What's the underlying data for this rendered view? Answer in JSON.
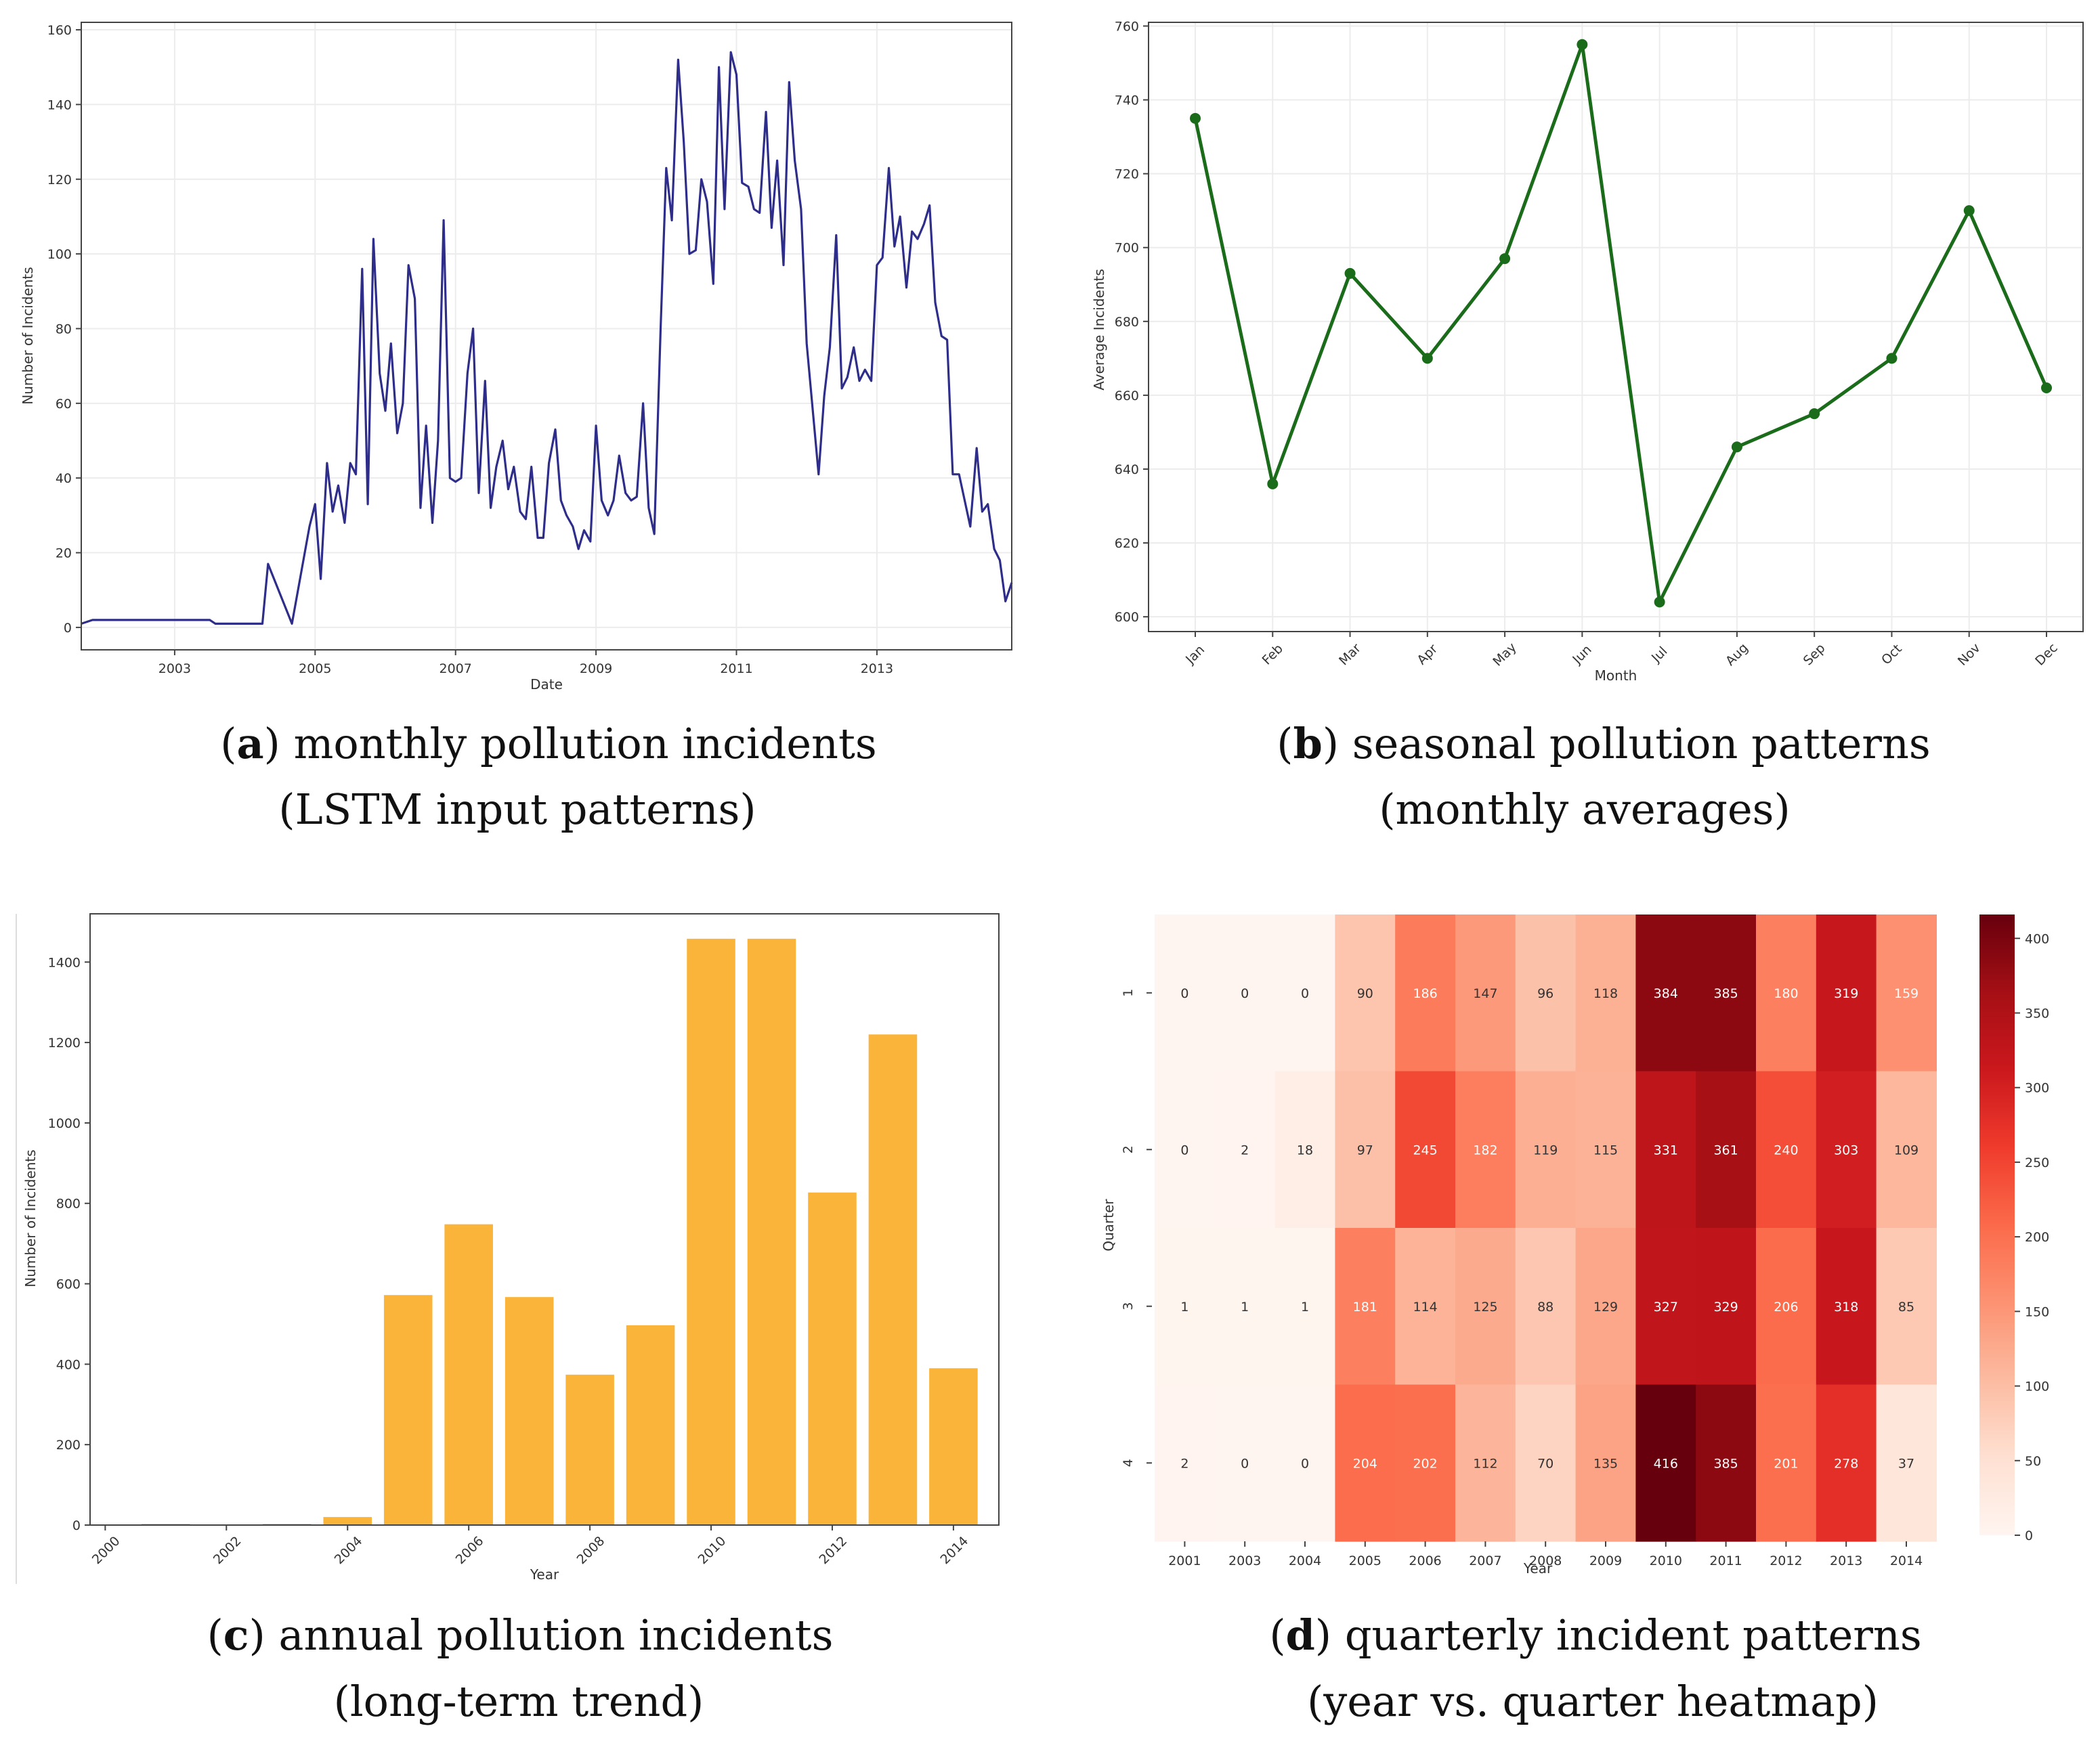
{
  "chart_data": [
    {
      "id": "a",
      "type": "line",
      "xlabel": "Date",
      "ylabel": "Number of Incidents",
      "xlim": [
        2001.67,
        2014.92
      ],
      "ylim": [
        -6,
        162
      ],
      "yticks": [
        0,
        20,
        40,
        60,
        80,
        100,
        120,
        140,
        160
      ],
      "xticks": [
        {
          "label": "2003",
          "x": 2003
        },
        {
          "label": "2005",
          "x": 2005
        },
        {
          "label": "2007",
          "x": 2007
        },
        {
          "label": "2009",
          "x": 2009
        },
        {
          "label": "2011",
          "x": 2011
        },
        {
          "label": "2013",
          "x": 2013
        }
      ],
      "color": "#2e2e8a",
      "points": [
        [
          2001.67,
          1
        ],
        [
          2001.83,
          2
        ],
        [
          2002.5,
          2
        ],
        [
          2003.0,
          2
        ],
        [
          2003.5,
          2
        ],
        [
          2003.58,
          1
        ],
        [
          2004.0,
          1
        ],
        [
          2004.25,
          1
        ],
        [
          2004.33,
          17
        ],
        [
          2004.67,
          1
        ],
        [
          2004.92,
          27
        ],
        [
          2005.0,
          33
        ],
        [
          2005.08,
          13
        ],
        [
          2005.17,
          44
        ],
        [
          2005.25,
          31
        ],
        [
          2005.33,
          38
        ],
        [
          2005.42,
          28
        ],
        [
          2005.5,
          44
        ],
        [
          2005.58,
          41
        ],
        [
          2005.67,
          96
        ],
        [
          2005.75,
          33
        ],
        [
          2005.83,
          104
        ],
        [
          2005.92,
          68
        ],
        [
          2006.0,
          58
        ],
        [
          2006.08,
          76
        ],
        [
          2006.17,
          52
        ],
        [
          2006.25,
          60
        ],
        [
          2006.33,
          97
        ],
        [
          2006.42,
          88
        ],
        [
          2006.5,
          32
        ],
        [
          2006.58,
          54
        ],
        [
          2006.67,
          28
        ],
        [
          2006.75,
          50
        ],
        [
          2006.83,
          109
        ],
        [
          2006.92,
          40
        ],
        [
          2007.0,
          39
        ],
        [
          2007.08,
          40
        ],
        [
          2007.17,
          68
        ],
        [
          2007.25,
          80
        ],
        [
          2007.33,
          36
        ],
        [
          2007.42,
          66
        ],
        [
          2007.5,
          32
        ],
        [
          2007.58,
          43
        ],
        [
          2007.67,
          50
        ],
        [
          2007.75,
          37
        ],
        [
          2007.83,
          43
        ],
        [
          2007.92,
          31
        ],
        [
          2008.0,
          29
        ],
        [
          2008.08,
          43
        ],
        [
          2008.17,
          24
        ],
        [
          2008.25,
          24
        ],
        [
          2008.33,
          44
        ],
        [
          2008.42,
          53
        ],
        [
          2008.5,
          34
        ],
        [
          2008.58,
          30
        ],
        [
          2008.67,
          27
        ],
        [
          2008.75,
          21
        ],
        [
          2008.83,
          26
        ],
        [
          2008.92,
          23
        ],
        [
          2009.0,
          54
        ],
        [
          2009.08,
          34
        ],
        [
          2009.17,
          30
        ],
        [
          2009.25,
          34
        ],
        [
          2009.33,
          46
        ],
        [
          2009.42,
          36
        ],
        [
          2009.5,
          34
        ],
        [
          2009.58,
          35
        ],
        [
          2009.67,
          60
        ],
        [
          2009.75,
          32
        ],
        [
          2009.83,
          25
        ],
        [
          2009.92,
          80
        ],
        [
          2010.0,
          123
        ],
        [
          2010.08,
          109
        ],
        [
          2010.17,
          152
        ],
        [
          2010.25,
          130
        ],
        [
          2010.33,
          100
        ],
        [
          2010.42,
          101
        ],
        [
          2010.5,
          120
        ],
        [
          2010.58,
          114
        ],
        [
          2010.67,
          92
        ],
        [
          2010.75,
          150
        ],
        [
          2010.83,
          112
        ],
        [
          2010.92,
          154
        ],
        [
          2011.0,
          148
        ],
        [
          2011.08,
          119
        ],
        [
          2011.17,
          118
        ],
        [
          2011.25,
          112
        ],
        [
          2011.33,
          111
        ],
        [
          2011.42,
          138
        ],
        [
          2011.5,
          107
        ],
        [
          2011.58,
          125
        ],
        [
          2011.67,
          97
        ],
        [
          2011.75,
          146
        ],
        [
          2011.83,
          125
        ],
        [
          2011.92,
          112
        ],
        [
          2012.0,
          76
        ],
        [
          2012.17,
          41
        ],
        [
          2012.25,
          62
        ],
        [
          2012.33,
          75
        ],
        [
          2012.42,
          105
        ],
        [
          2012.5,
          64
        ],
        [
          2012.58,
          67
        ],
        [
          2012.67,
          75
        ],
        [
          2012.75,
          66
        ],
        [
          2012.83,
          69
        ],
        [
          2012.92,
          66
        ],
        [
          2013.0,
          97
        ],
        [
          2013.08,
          99
        ],
        [
          2013.17,
          123
        ],
        [
          2013.25,
          102
        ],
        [
          2013.33,
          110
        ],
        [
          2013.42,
          91
        ],
        [
          2013.5,
          106
        ],
        [
          2013.58,
          104
        ],
        [
          2013.67,
          108
        ],
        [
          2013.75,
          113
        ],
        [
          2013.83,
          87
        ],
        [
          2013.92,
          78
        ],
        [
          2014.0,
          77
        ],
        [
          2014.08,
          41
        ],
        [
          2014.17,
          41
        ],
        [
          2014.25,
          34
        ],
        [
          2014.33,
          27
        ],
        [
          2014.42,
          48
        ],
        [
          2014.5,
          31
        ],
        [
          2014.58,
          33
        ],
        [
          2014.67,
          21
        ],
        [
          2014.75,
          18
        ],
        [
          2014.83,
          7
        ],
        [
          2014.92,
          12
        ]
      ]
    },
    {
      "id": "b",
      "type": "line",
      "xlabel": "Month",
      "ylabel": "Average Incidents",
      "ylim": [
        596,
        761
      ],
      "yticks": [
        600,
        620,
        640,
        660,
        680,
        700,
        720,
        740,
        760
      ],
      "categories": [
        "Jan",
        "Feb",
        "Mar",
        "Apr",
        "May",
        "Jun",
        "Jul",
        "Aug",
        "Sep",
        "Oct",
        "Nov",
        "Dec"
      ],
      "values": [
        735,
        636,
        693,
        670,
        697,
        755,
        604,
        646,
        655,
        670,
        710,
        662
      ],
      "color": "#1a6b1a"
    },
    {
      "id": "c",
      "type": "bar",
      "xlabel": "Year",
      "ylabel": "Number of Incidents",
      "xlim": [
        1999.75,
        2014.75
      ],
      "ylim": [
        0,
        1520
      ],
      "yticks": [
        0,
        200,
        400,
        600,
        800,
        1000,
        1200,
        1400
      ],
      "xticks": [
        "2000",
        "2002",
        "2004",
        "2006",
        "2008",
        "2010",
        "2012",
        "2014"
      ],
      "years": [
        2000,
        2001,
        2002,
        2003,
        2004,
        2005,
        2006,
        2007,
        2008,
        2009,
        2010,
        2011,
        2012,
        2013,
        2014
      ],
      "values": [
        0,
        3,
        0,
        3,
        20,
        572,
        748,
        567,
        374,
        497,
        1458,
        1458,
        827,
        1220,
        390
      ],
      "color": "#fbb43a"
    },
    {
      "id": "d",
      "type": "heatmap",
      "xlabel": "Year",
      "ylabel": "Quarter",
      "x": [
        "2001",
        "2003",
        "2004",
        "2005",
        "2006",
        "2007",
        "2008",
        "2009",
        "2010",
        "2011",
        "2012",
        "2013",
        "2014"
      ],
      "y": [
        "1",
        "2",
        "3",
        "4"
      ],
      "values": [
        [
          0,
          0,
          0,
          90,
          186,
          147,
          96,
          118,
          384,
          385,
          180,
          319,
          159
        ],
        [
          0,
          2,
          18,
          97,
          245,
          182,
          119,
          115,
          331,
          361,
          240,
          303,
          109
        ],
        [
          1,
          1,
          1,
          181,
          114,
          125,
          88,
          129,
          327,
          329,
          206,
          318,
          85
        ],
        [
          2,
          0,
          0,
          204,
          202,
          112,
          70,
          135,
          416,
          385,
          201,
          278,
          37
        ]
      ],
      "vmin": 0,
      "vmax": 416,
      "colorbar_ticks": [
        0,
        50,
        100,
        150,
        200,
        250,
        300,
        350,
        400
      ],
      "colormap": "Reds"
    }
  ],
  "captions": {
    "a": {
      "letter": "a",
      "line1": " monthly pollution incidents",
      "line2": "(LSTM input patterns)"
    },
    "b": {
      "letter": "b",
      "line1": " seasonal pollution patterns",
      "line2": "(monthly averages)"
    },
    "c": {
      "letter": "c",
      "line1": " annual pollution incidents",
      "line2": "(long-term trend)"
    },
    "d": {
      "letter": "d",
      "line1": " quarterly incident patterns",
      "line2": "(year vs. quarter heatmap)"
    }
  }
}
